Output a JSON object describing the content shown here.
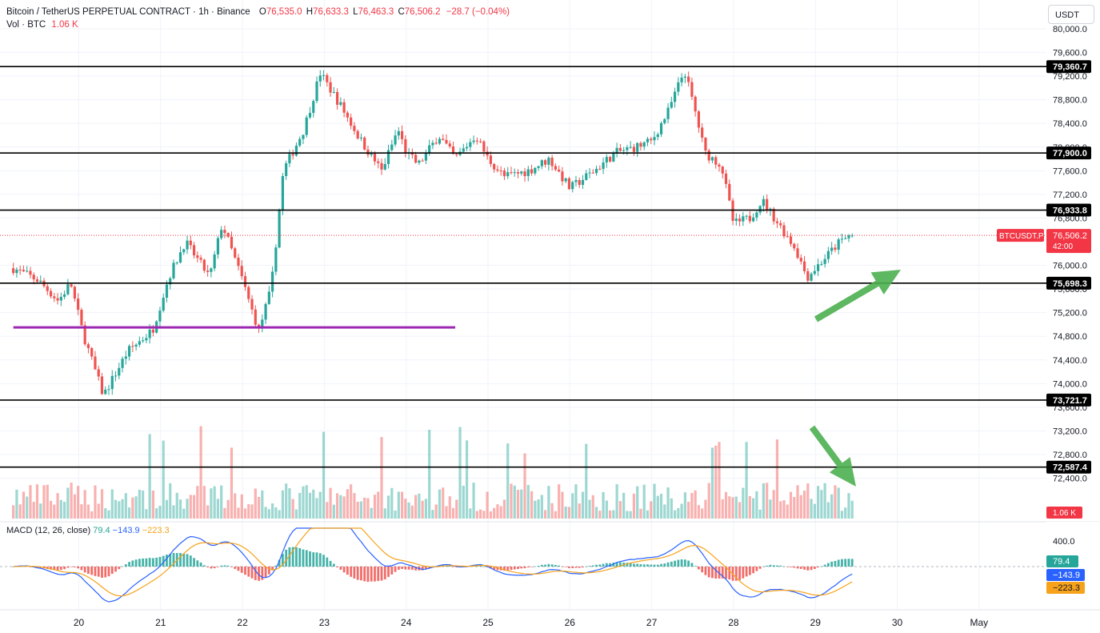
{
  "header": {
    "symbol_line": "Bitcoin / TetherUS PERPETUAL CONTRACT · 1h · Binance",
    "open_key": "O",
    "open": "76,535.0",
    "high_key": "H",
    "high": "76,633.3",
    "low_key": "L",
    "low": "76,463.3",
    "close_key": "C",
    "close": "76,506.2",
    "change": "−28.7 (−0.04%)",
    "vol_label": "Vol · BTC",
    "vol_value": "1.06 K"
  },
  "currency_button": "USDT",
  "chart_data": {
    "type": "candlestick",
    "instrument": "BTCUSDT.P",
    "timeframe": "1h",
    "y_range": [
      72000,
      80200
    ],
    "y_ticks": [
      {
        "v": 80000,
        "label": "80,000.0"
      },
      {
        "v": 79600,
        "label": "79,600.0"
      },
      {
        "v": 79200,
        "label": "79,200.0"
      },
      {
        "v": 78800,
        "label": "78,800.0"
      },
      {
        "v": 78400,
        "label": "78,400.0"
      },
      {
        "v": 78000,
        "label": "78,000.0"
      },
      {
        "v": 77600,
        "label": "77,600.0"
      },
      {
        "v": 77200,
        "label": "77,200.0"
      },
      {
        "v": 76800,
        "label": "76,800.0"
      },
      {
        "v": 76000,
        "label": "76,000.0"
      },
      {
        "v": 75600,
        "label": "75,600.0"
      },
      {
        "v": 75200,
        "label": "75,200.0"
      },
      {
        "v": 74800,
        "label": "74,800.0"
      },
      {
        "v": 74400,
        "label": "74,400.0"
      },
      {
        "v": 74000,
        "label": "74,000.0"
      },
      {
        "v": 73600,
        "label": "73,600.0"
      },
      {
        "v": 73200,
        "label": "73,200.0"
      },
      {
        "v": 72800,
        "label": "72,800.0"
      },
      {
        "v": 72400,
        "label": "72,400.0"
      }
    ],
    "x_ticks": [
      "20",
      "21",
      "22",
      "23",
      "24",
      "25",
      "26",
      "27",
      "28",
      "29",
      "30",
      "May"
    ],
    "horizontal_levels": [
      {
        "value": 79360.7,
        "label": "79,360.7"
      },
      {
        "value": 77900.0,
        "label": "77,900.0"
      },
      {
        "value": 76933.8,
        "label": "76,933.8"
      },
      {
        "value": 75698.3,
        "label": "75,698.3"
      },
      {
        "value": 73721.7,
        "label": "73,721.7"
      },
      {
        "value": 72587.4,
        "label": "72,587.4"
      }
    ],
    "purple_level": {
      "value": 74950,
      "from_day": 19.2,
      "to_day": 24.6
    },
    "last_price": {
      "value": 76506.2,
      "label": "76,506.2",
      "countdown": "42:00",
      "tag": "BTCUSDT.P"
    },
    "volume_label": "1.06 K",
    "path_points": [
      [
        19.2,
        75950
      ],
      [
        19.5,
        75750
      ],
      [
        19.75,
        75400
      ],
      [
        19.9,
        75700
      ],
      [
        20.05,
        74850
      ],
      [
        20.3,
        73800
      ],
      [
        20.6,
        74550
      ],
      [
        20.9,
        74900
      ],
      [
        21.1,
        75800
      ],
      [
        21.3,
        76400
      ],
      [
        21.6,
        75800
      ],
      [
        21.75,
        76700
      ],
      [
        22.0,
        75750
      ],
      [
        22.1,
        75300
      ],
      [
        22.2,
        74900
      ],
      [
        22.35,
        75600
      ],
      [
        22.5,
        77600
      ],
      [
        22.75,
        78300
      ],
      [
        22.95,
        79250
      ],
      [
        23.2,
        78700
      ],
      [
        23.45,
        78100
      ],
      [
        23.7,
        77600
      ],
      [
        23.9,
        78300
      ],
      [
        24.0,
        77900
      ],
      [
        24.15,
        77700
      ],
      [
        24.4,
        78200
      ],
      [
        24.6,
        77800
      ],
      [
        24.85,
        78200
      ],
      [
        25.0,
        77800
      ],
      [
        25.2,
        77500
      ],
      [
        25.5,
        77600
      ],
      [
        25.75,
        77800
      ],
      [
        26.0,
        77300
      ],
      [
        26.3,
        77600
      ],
      [
        26.55,
        77900
      ],
      [
        26.8,
        78000
      ],
      [
        27.0,
        78100
      ],
      [
        27.2,
        78600
      ],
      [
        27.4,
        79300
      ],
      [
        27.55,
        78500
      ],
      [
        27.65,
        77900
      ],
      [
        27.85,
        77700
      ],
      [
        28.0,
        76700
      ],
      [
        28.2,
        76800
      ],
      [
        28.35,
        77100
      ],
      [
        28.55,
        76700
      ],
      [
        28.75,
        76300
      ],
      [
        28.9,
        75800
      ],
      [
        29.1,
        76100
      ],
      [
        29.3,
        76400
      ],
      [
        29.45,
        76506
      ]
    ],
    "macd": {
      "label": "MACD (12, 26, close)",
      "histogram": 79.4,
      "histogram_label": "79.4",
      "macd": -143.9,
      "macd_label": "−143.9",
      "signal": -223.3,
      "signal_label": "−223.3",
      "tick": "400.0",
      "colors": {
        "macd": "#2962ff",
        "signal": "#f7a21b",
        "hist_up": "#26a69a",
        "hist_down": "#ef5350"
      }
    },
    "annotations": [
      {
        "type": "arrow",
        "color": "#4caf50",
        "direction": "up-right"
      },
      {
        "type": "arrow",
        "color": "#4caf50",
        "direction": "down-right"
      }
    ],
    "colors": {
      "up": "#26a69a",
      "down": "#ef5350",
      "level": "#000000",
      "purple": "#9c27b0"
    }
  }
}
